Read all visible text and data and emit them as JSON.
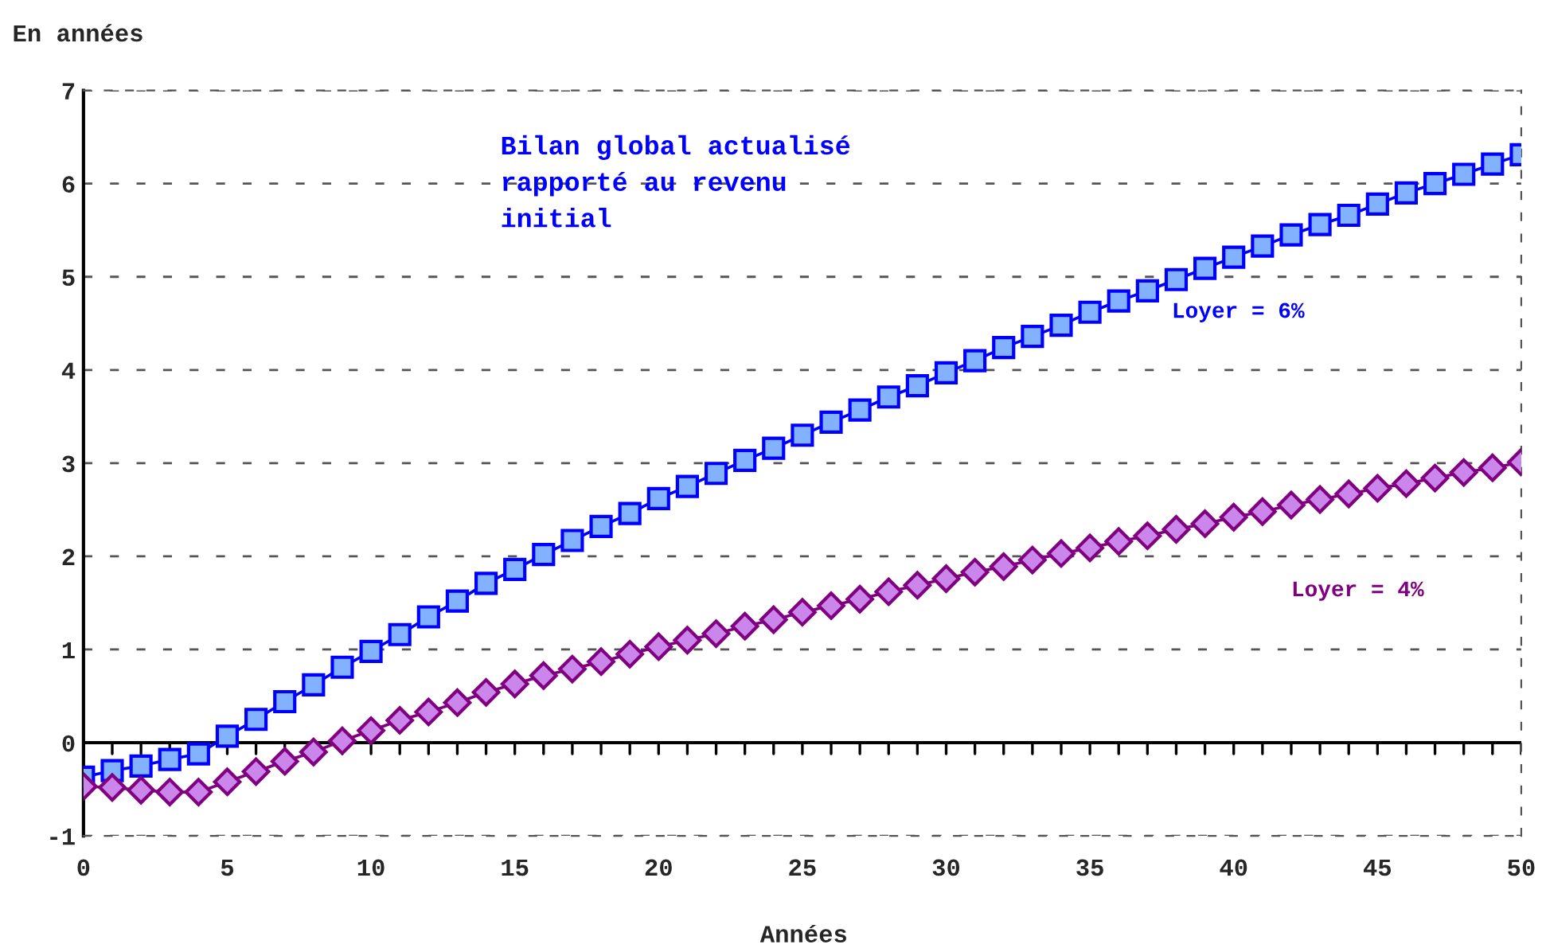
{
  "chart_data": {
    "type": "line",
    "ylabel": "En années",
    "xlabel": "Années",
    "annotations": [
      "Bilan global actualisé\nrapporté au revenu\ninitial"
    ],
    "x": [
      0,
      1,
      2,
      3,
      4,
      5,
      6,
      7,
      8,
      9,
      10,
      11,
      12,
      13,
      14,
      15,
      16,
      17,
      18,
      19,
      20,
      21,
      22,
      23,
      24,
      25,
      26,
      27,
      28,
      29,
      30,
      31,
      32,
      33,
      34,
      35,
      36,
      37,
      38,
      39,
      40,
      41,
      42,
      43,
      44,
      45,
      46,
      47,
      48,
      49,
      50
    ],
    "series": [
      {
        "name": "Loyer = 6%",
        "color": "#0000ff",
        "marker": "square",
        "values": [
          -0.37,
          -0.3,
          -0.25,
          -0.18,
          -0.12,
          0.07,
          0.25,
          0.44,
          0.62,
          0.81,
          0.98,
          1.16,
          1.35,
          1.52,
          1.71,
          1.86,
          2.02,
          2.17,
          2.32,
          2.46,
          2.62,
          2.75,
          2.89,
          3.03,
          3.16,
          3.3,
          3.44,
          3.57,
          3.71,
          3.83,
          3.97,
          4.1,
          4.24,
          4.36,
          4.48,
          4.62,
          4.74,
          4.85,
          4.97,
          5.09,
          5.21,
          5.33,
          5.45,
          5.56,
          5.66,
          5.78,
          5.9,
          6.0,
          6.1,
          6.21,
          6.31
        ]
      },
      {
        "name": "Loyer = 4%",
        "color": "#800080",
        "marker": "diamond",
        "values": [
          -0.47,
          -0.48,
          -0.51,
          -0.53,
          -0.53,
          -0.42,
          -0.31,
          -0.2,
          -0.1,
          0.02,
          0.13,
          0.24,
          0.33,
          0.43,
          0.54,
          0.63,
          0.72,
          0.79,
          0.87,
          0.95,
          1.03,
          1.1,
          1.17,
          1.25,
          1.32,
          1.4,
          1.47,
          1.54,
          1.62,
          1.69,
          1.76,
          1.83,
          1.89,
          1.96,
          2.03,
          2.09,
          2.16,
          2.22,
          2.29,
          2.35,
          2.42,
          2.48,
          2.55,
          2.61,
          2.67,
          2.73,
          2.78,
          2.84,
          2.9,
          2.95,
          3.01
        ]
      }
    ],
    "xlim": [
      0,
      50
    ],
    "xticks": [
      0,
      5,
      10,
      15,
      20,
      25,
      30,
      35,
      40,
      45,
      50
    ],
    "ylim": [
      -1,
      7
    ],
    "yticks": [
      -1,
      0,
      1,
      2,
      3,
      4,
      5,
      6,
      7
    ],
    "ref_lines": [
      {
        "axis": "y",
        "value": 0,
        "color": "#000000"
      }
    ],
    "grid": "y",
    "legend": false
  }
}
